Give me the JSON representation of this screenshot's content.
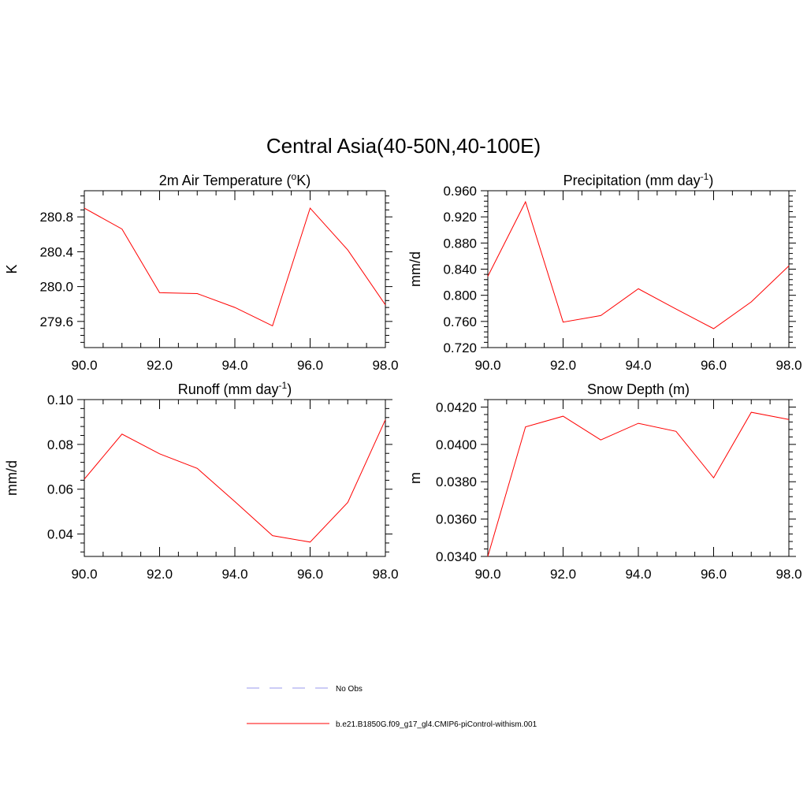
{
  "title": "Central Asia(40-50N,40-100E)",
  "colors": {
    "model_line": "#ff0000",
    "obs_line": "#9999ee",
    "axis": "#000000"
  },
  "legend": [
    {
      "label": "No Obs",
      "style": "dashed",
      "color": "#9999ee"
    },
    {
      "label": "b.e21.B1850G.f09_g17_gl4.CMIP6-piControl-withism.001",
      "style": "solid",
      "color": "#ff0000"
    }
  ],
  "chart_data": [
    {
      "type": "line",
      "title_main": "2m Air Temperature (",
      "title_sup": "o",
      "title_end": "K)",
      "ylabel": "K",
      "xlim": [
        90,
        98
      ],
      "ylim": [
        279.3,
        281.1
      ],
      "xticks": [
        90,
        92,
        94,
        96,
        98
      ],
      "xtick_labels": [
        "90.0",
        "92.0",
        "94.0",
        "96.0",
        "98.0"
      ],
      "yticks": [
        279.6,
        280.0,
        280.4,
        280.8
      ],
      "ytick_labels": [
        "279.6",
        "280.0",
        "280.4",
        "280.8"
      ],
      "x": [
        90,
        91,
        92,
        93,
        94,
        95,
        96,
        97,
        98
      ],
      "series": [
        {
          "values": [
            280.9,
            280.66,
            279.93,
            279.92,
            279.76,
            279.55,
            280.9,
            280.42,
            279.79
          ]
        }
      ]
    },
    {
      "type": "line",
      "title_main": "Precipitation (mm day",
      "title_sup": "-1",
      "title_end": ")",
      "ylabel": "mm/d",
      "xlim": [
        90,
        98
      ],
      "ylim": [
        0.72,
        0.96
      ],
      "xticks": [
        90,
        92,
        94,
        96,
        98
      ],
      "xtick_labels": [
        "90.0",
        "92.0",
        "94.0",
        "96.0",
        "98.0"
      ],
      "yticks": [
        0.72,
        0.76,
        0.8,
        0.84,
        0.88,
        0.92,
        0.96
      ],
      "ytick_labels": [
        "0.720",
        "0.760",
        "0.800",
        "0.840",
        "0.880",
        "0.920",
        "0.960"
      ],
      "x": [
        90,
        91,
        92,
        93,
        94,
        95,
        96,
        97,
        98
      ],
      "series": [
        {
          "values": [
            0.829,
            0.943,
            0.759,
            0.769,
            0.81,
            0.779,
            0.749,
            0.79,
            0.845
          ]
        }
      ]
    },
    {
      "type": "line",
      "title_main": "Runoff (mm day",
      "title_sup": "-1",
      "title_end": ")",
      "ylabel": "mm/d",
      "xlim": [
        90,
        98
      ],
      "ylim": [
        0.03,
        0.1
      ],
      "xticks": [
        90,
        92,
        94,
        96,
        98
      ],
      "xtick_labels": [
        "90.0",
        "92.0",
        "94.0",
        "96.0",
        "98.0"
      ],
      "yticks": [
        0.04,
        0.06,
        0.08,
        0.1
      ],
      "ytick_labels": [
        "0.04",
        "0.06",
        "0.08",
        "0.10"
      ],
      "x": [
        90,
        91,
        92,
        93,
        94,
        95,
        96,
        97,
        98
      ],
      "series": [
        {
          "values": [
            0.0645,
            0.0846,
            0.0758,
            0.0693,
            0.0545,
            0.0393,
            0.0364,
            0.0541,
            0.091
          ]
        }
      ]
    },
    {
      "type": "line",
      "title_main": "Snow Depth (m)",
      "title_sup": "",
      "title_end": "",
      "ylabel": "m",
      "xlim": [
        90,
        98
      ],
      "ylim": [
        0.034,
        0.0424
      ],
      "xticks": [
        90,
        92,
        94,
        96,
        98
      ],
      "xtick_labels": [
        "90.0",
        "92.0",
        "94.0",
        "96.0",
        "98.0"
      ],
      "yticks": [
        0.034,
        0.036,
        0.038,
        0.04,
        0.042
      ],
      "ytick_labels": [
        "0.0340",
        "0.0360",
        "0.0380",
        "0.0400",
        "0.0420"
      ],
      "x": [
        90,
        91,
        92,
        93,
        94,
        95,
        96,
        97,
        98
      ],
      "series": [
        {
          "values": [
            0.034,
            0.04094,
            0.04151,
            0.04024,
            0.04113,
            0.0407,
            0.03821,
            0.04172,
            0.04133
          ]
        }
      ]
    }
  ]
}
